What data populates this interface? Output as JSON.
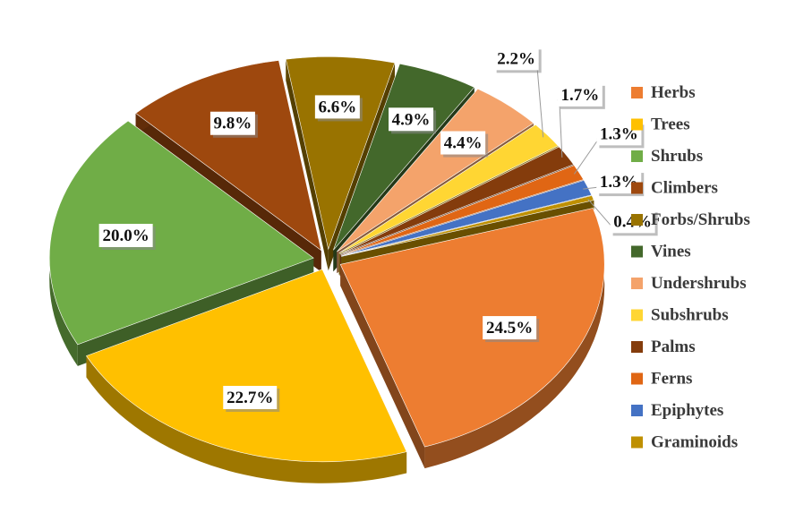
{
  "chart_data": {
    "type": "pie",
    "title": "",
    "exploded": true,
    "three_d": true,
    "legend_position": "right",
    "slices": [
      {
        "name": "Herbs",
        "value": 24.5,
        "label": "24.5%",
        "color": "#ED7D31"
      },
      {
        "name": "Trees",
        "value": 22.7,
        "label": "22.7%",
        "color": "#FFC000"
      },
      {
        "name": "Shrubs",
        "value": 20.0,
        "label": "20.0%",
        "color": "#70AD47"
      },
      {
        "name": "Climbers",
        "value": 9.8,
        "label": "9.8%",
        "color": "#9E480E"
      },
      {
        "name": "Forbs/Shrubs",
        "value": 6.6,
        "label": "6.6%",
        "color": "#997300"
      },
      {
        "name": "Vines",
        "value": 4.9,
        "label": "4.9%",
        "color": "#43682B"
      },
      {
        "name": "Undershrubs",
        "value": 4.4,
        "label": "4.4%",
        "color": "#F4A36B"
      },
      {
        "name": "Subshrubs",
        "value": 2.2,
        "label": "2.2%",
        "color": "#FFD633"
      },
      {
        "name": "Palms",
        "value": 1.7,
        "label": "1.7%",
        "color": "#843C0C"
      },
      {
        "name": "Ferns",
        "value": 1.3,
        "label": "1.3%",
        "color": "#E06614"
      },
      {
        "name": "Epiphytes",
        "value": 1.3,
        "label": "1.3%",
        "color": "#4472C4"
      },
      {
        "name": "Graminoids",
        "value": 0.4,
        "label": "0.4%",
        "color": "#BF9000"
      }
    ]
  }
}
